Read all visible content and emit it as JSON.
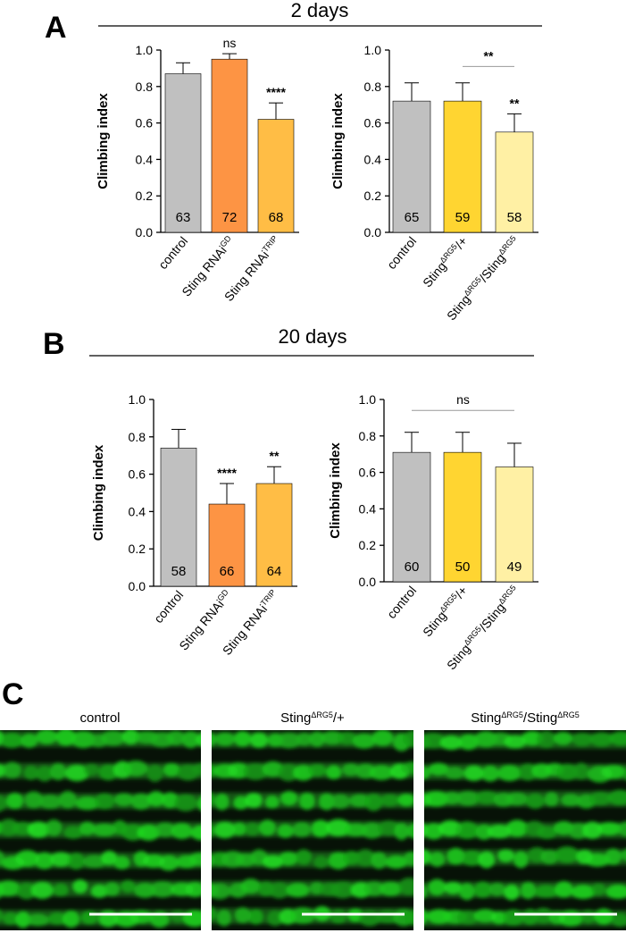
{
  "panel_a": {
    "letter": "A",
    "title": "2 days"
  },
  "panel_b": {
    "letter": "B",
    "title": "20 days"
  },
  "panel_c": {
    "letter": "C",
    "images": [
      {
        "label": [
          "control"
        ]
      },
      {
        "label": [
          "Sting",
          "ΔRG5",
          "/+"
        ]
      },
      {
        "label": [
          "Sting",
          "ΔRG5",
          "/Sting",
          "ΔRG5"
        ]
      }
    ]
  },
  "chart_data": [
    {
      "type": "bar",
      "ylabel": "Climbing index",
      "categories": [
        [
          "control"
        ],
        [
          "Sting RNAi",
          "GD"
        ],
        [
          "Sting RNAi",
          "TRIP"
        ]
      ],
      "values": [
        0.87,
        0.95,
        0.62
      ],
      "errors": [
        0.06,
        0.03,
        0.09
      ],
      "n": [
        63,
        72,
        68
      ],
      "annotations": [
        null,
        "ns",
        "****"
      ],
      "colors": [
        "#c0c0c0",
        "#fd9444",
        "#ffbd45"
      ],
      "ylim": [
        0,
        1
      ],
      "yticks": [
        {
          "value": 0,
          "label": "0.0"
        },
        0.2,
        0.4,
        0.6,
        0.8,
        {
          "value": 1,
          "label": "1.0"
        }
      ],
      "brackets": []
    },
    {
      "type": "bar",
      "ylabel": "Climbing index",
      "categories": [
        [
          "control"
        ],
        [
          "Sting",
          "ΔRG5",
          "/+"
        ],
        [
          "Sting",
          "ΔRG5",
          "/Sting",
          "ΔRG5"
        ]
      ],
      "values": [
        0.72,
        0.72,
        0.55
      ],
      "errors": [
        0.1,
        0.1,
        0.1
      ],
      "n": [
        65,
        59,
        58
      ],
      "annotations": [
        null,
        null,
        "**"
      ],
      "colors": [
        "#c0c0c0",
        "#ffd531",
        "#fff0a4"
      ],
      "ylim": [
        0,
        1
      ],
      "yticks": [
        {
          "value": 0,
          "label": "0.0"
        },
        0.2,
        0.4,
        0.6,
        0.8,
        {
          "value": 1,
          "label": "1.0"
        }
      ],
      "brackets": [
        {
          "span": [
            1,
            2
          ],
          "y": 0.91,
          "label": "**"
        }
      ]
    },
    {
      "type": "bar",
      "ylabel": "Climbing index",
      "categories": [
        [
          "control"
        ],
        [
          "Sting RNAi",
          "GD"
        ],
        [
          "Sting RNAi",
          "TRIP"
        ]
      ],
      "values": [
        0.74,
        0.44,
        0.55
      ],
      "errors": [
        0.1,
        0.11,
        0.09
      ],
      "n": [
        58,
        66,
        64
      ],
      "annotations": [
        null,
        "****",
        "**"
      ],
      "colors": [
        "#c0c0c0",
        "#fd9444",
        "#ffbd45"
      ],
      "ylim": [
        0,
        1
      ],
      "yticks": [
        {
          "value": 0,
          "label": "0.0"
        },
        0.2,
        0.4,
        0.6,
        0.8,
        {
          "value": 1,
          "label": "1.0"
        }
      ],
      "brackets": []
    },
    {
      "type": "bar",
      "ylabel": "Climbing index",
      "categories": [
        [
          "control"
        ],
        [
          "Sting",
          "ΔRG5",
          "/+"
        ],
        [
          "Sting",
          "ΔRG5",
          "/Sting",
          "ΔRG5"
        ]
      ],
      "values": [
        0.71,
        0.71,
        0.63
      ],
      "errors": [
        0.11,
        0.11,
        0.13
      ],
      "n": [
        60,
        50,
        49
      ],
      "annotations": [
        null,
        null,
        null
      ],
      "colors": [
        "#c0c0c0",
        "#ffd531",
        "#fff0a4"
      ],
      "ylim": [
        0,
        1
      ],
      "yticks": [
        {
          "value": 0,
          "label": "0.0"
        },
        0.2,
        0.4,
        0.6,
        0.8,
        {
          "value": 1,
          "label": "1.0"
        }
      ],
      "brackets": [
        {
          "span": [
            0,
            2
          ],
          "y": 0.94,
          "label": "ns"
        }
      ]
    }
  ]
}
